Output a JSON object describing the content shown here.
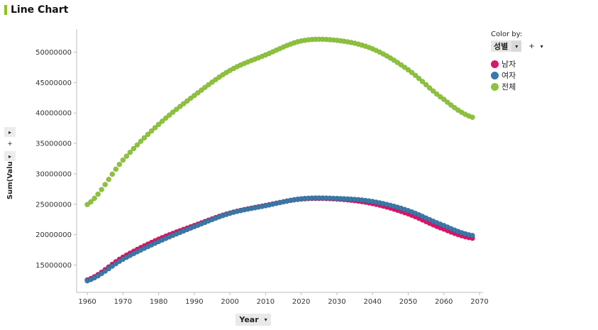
{
  "title": "Line Chart",
  "colors": {
    "accent": "#8fc31f",
    "male": "#e0126a",
    "female": "#3b78a8",
    "total": "#8dc33b"
  },
  "legend": {
    "title": "Color by:",
    "field": "성별",
    "add_label": "+",
    "items": [
      {
        "label": "남자",
        "color": "#e0126a"
      },
      {
        "label": "여자",
        "color": "#3b78a8"
      },
      {
        "label": "전체",
        "color": "#8dc33b"
      }
    ]
  },
  "y_controls": {
    "up": "▸",
    "add": "+",
    "down": "▸"
  },
  "x_control": {
    "label": "Year",
    "caret": "▾"
  },
  "chart_data": {
    "type": "scatter",
    "xlabel": "Year",
    "ylabel": "Sum(Value)",
    "xlim": [
      1957,
      2071
    ],
    "ylim": [
      10500000,
      53800000
    ],
    "x_ticks": [
      1960,
      1970,
      1980,
      1990,
      2000,
      2010,
      2020,
      2030,
      2040,
      2050,
      2060,
      2070
    ],
    "y_ticks": [
      15000000,
      20000000,
      25000000,
      30000000,
      35000000,
      40000000,
      45000000,
      50000000
    ],
    "grid": false,
    "legend_position": "top-right",
    "x_start": 1960,
    "x_end": 2068,
    "series": [
      {
        "name": "전체",
        "color": "#8dc33b",
        "anchors": [
          [
            1960,
            24950000
          ],
          [
            1970,
            32250000
          ],
          [
            1980,
            38120000
          ],
          [
            1990,
            42870000
          ],
          [
            2000,
            47000000
          ],
          [
            2010,
            49550000
          ],
          [
            2020,
            51850000
          ],
          [
            2030,
            51950000
          ],
          [
            2040,
            50550000
          ],
          [
            2050,
            47100000
          ],
          [
            2060,
            42250000
          ],
          [
            2068,
            39300000
          ]
        ]
      },
      {
        "name": "남자",
        "color": "#e0126a",
        "anchors": [
          [
            1960,
            12550000
          ],
          [
            1970,
            16300000
          ],
          [
            1980,
            19250000
          ],
          [
            1990,
            21500000
          ],
          [
            2000,
            23550000
          ],
          [
            2010,
            24800000
          ],
          [
            2020,
            25850000
          ],
          [
            2030,
            25850000
          ],
          [
            2040,
            25100000
          ],
          [
            2050,
            23400000
          ],
          [
            2060,
            20900000
          ],
          [
            2068,
            19400000
          ]
        ]
      },
      {
        "name": "여자",
        "color": "#3b78a8",
        "anchors": [
          [
            1960,
            12400000
          ],
          [
            1970,
            15950000
          ],
          [
            1980,
            18850000
          ],
          [
            1990,
            21300000
          ],
          [
            2000,
            23500000
          ],
          [
            2010,
            24750000
          ],
          [
            2020,
            25900000
          ],
          [
            2030,
            25950000
          ],
          [
            2040,
            25450000
          ],
          [
            2050,
            23950000
          ],
          [
            2060,
            21500000
          ],
          [
            2068,
            19850000
          ]
        ]
      }
    ]
  }
}
